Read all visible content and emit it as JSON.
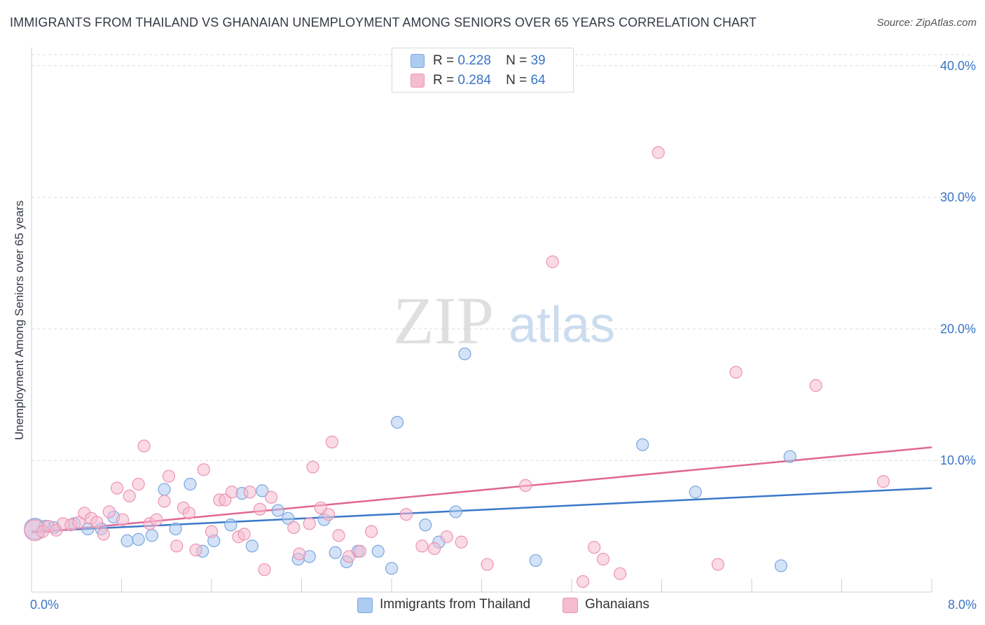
{
  "header": {
    "title": "IMMIGRANTS FROM THAILAND VS GHANAIAN UNEMPLOYMENT AMONG SENIORS OVER 65 YEARS CORRELATION CHART",
    "source": "Source: ZipAtlas.com"
  },
  "legend": {
    "series1": {
      "r_label": "R =",
      "r_value": "0.228",
      "n_label": "N =",
      "n_value": "39"
    },
    "series2": {
      "r_label": "R =",
      "r_value": "0.284",
      "n_label": "N =",
      "n_value": "64"
    }
  },
  "bottom_legend": {
    "series1": "Immigrants from Thailand",
    "series2": "Ghanaians"
  },
  "watermark": {
    "zip": "ZIP",
    "atlas": "atlas"
  },
  "colors": {
    "blue_fill": "#aecbf0",
    "blue_stroke": "#7aa7e0",
    "blue_line": "#3a78c9",
    "pink_fill": "#f5bccf",
    "pink_stroke": "#ec94b3",
    "pink_line": "#e06792",
    "axis_text": "#3a74c6",
    "grid": "#dcdcdc"
  },
  "chart_data": {
    "type": "scatter",
    "title": "IMMIGRANTS FROM THAILAND VS GHANAIAN UNEMPLOYMENT AMONG SENIORS OVER 65 YEARS CORRELATION CHART",
    "xlabel": "",
    "ylabel": "Unemployment Among Seniors over 65 years",
    "xlim": [
      0,
      8
    ],
    "ylim": [
      0,
      41
    ],
    "x_tick_labels": [
      "0.0%",
      "8.0%"
    ],
    "y_ticks": [
      10,
      20,
      30,
      40
    ],
    "y_tick_labels": [
      "10.0%",
      "20.0%",
      "30.0%",
      "40.0%"
    ],
    "grid": true,
    "series": [
      {
        "name": "Immigrants from Thailand",
        "color": "#aecbf0",
        "trend": {
          "x0": 0,
          "y0": 4.6,
          "x1": 8,
          "y1": 7.9
        },
        "points": [
          {
            "x": 0.03,
            "y": 4.8,
            "big": true
          },
          {
            "x": 0.12,
            "y": 5.0
          },
          {
            "x": 0.2,
            "y": 4.9
          },
          {
            "x": 0.38,
            "y": 5.2
          },
          {
            "x": 0.5,
            "y": 4.8
          },
          {
            "x": 0.62,
            "y": 4.8
          },
          {
            "x": 0.73,
            "y": 5.7
          },
          {
            "x": 0.85,
            "y": 3.9
          },
          {
            "x": 0.95,
            "y": 4.0
          },
          {
            "x": 1.07,
            "y": 4.3
          },
          {
            "x": 1.18,
            "y": 7.8
          },
          {
            "x": 1.28,
            "y": 4.8
          },
          {
            "x": 1.41,
            "y": 8.2
          },
          {
            "x": 1.52,
            "y": 3.1
          },
          {
            "x": 1.62,
            "y": 3.9
          },
          {
            "x": 1.77,
            "y": 5.1
          },
          {
            "x": 1.87,
            "y": 7.5
          },
          {
            "x": 1.96,
            "y": 3.5
          },
          {
            "x": 2.05,
            "y": 7.7
          },
          {
            "x": 2.19,
            "y": 6.2
          },
          {
            "x": 2.28,
            "y": 5.6
          },
          {
            "x": 2.37,
            "y": 2.5
          },
          {
            "x": 2.47,
            "y": 2.7
          },
          {
            "x": 2.6,
            "y": 5.5
          },
          {
            "x": 2.7,
            "y": 3.0
          },
          {
            "x": 2.8,
            "y": 2.3
          },
          {
            "x": 2.9,
            "y": 3.1
          },
          {
            "x": 3.08,
            "y": 3.1
          },
          {
            "x": 3.2,
            "y": 1.8
          },
          {
            "x": 3.25,
            "y": 12.9
          },
          {
            "x": 3.5,
            "y": 5.1
          },
          {
            "x": 3.62,
            "y": 3.8
          },
          {
            "x": 3.77,
            "y": 6.1
          },
          {
            "x": 3.85,
            "y": 18.1
          },
          {
            "x": 4.48,
            "y": 2.4
          },
          {
            "x": 5.43,
            "y": 11.2
          },
          {
            "x": 5.9,
            "y": 7.6
          },
          {
            "x": 6.66,
            "y": 2.0
          },
          {
            "x": 6.74,
            "y": 10.3
          }
        ]
      },
      {
        "name": "Ghanaians",
        "color": "#f5bccf",
        "trend": {
          "x0": 0,
          "y0": 4.5,
          "x1": 8,
          "y1": 11.0
        },
        "points": [
          {
            "x": 0.03,
            "y": 4.7,
            "big": true
          },
          {
            "x": 0.1,
            "y": 4.6
          },
          {
            "x": 0.15,
            "y": 5.0
          },
          {
            "x": 0.22,
            "y": 4.7
          },
          {
            "x": 0.28,
            "y": 5.2
          },
          {
            "x": 0.35,
            "y": 5.1
          },
          {
            "x": 0.42,
            "y": 5.3
          },
          {
            "x": 0.47,
            "y": 6.0
          },
          {
            "x": 0.53,
            "y": 5.6
          },
          {
            "x": 0.58,
            "y": 5.3
          },
          {
            "x": 0.64,
            "y": 4.4
          },
          {
            "x": 0.69,
            "y": 6.1
          },
          {
            "x": 0.76,
            "y": 7.9
          },
          {
            "x": 0.81,
            "y": 5.5
          },
          {
            "x": 0.87,
            "y": 7.3
          },
          {
            "x": 0.95,
            "y": 8.2
          },
          {
            "x": 1.0,
            "y": 11.1
          },
          {
            "x": 1.05,
            "y": 5.2
          },
          {
            "x": 1.11,
            "y": 5.5
          },
          {
            "x": 1.18,
            "y": 6.9
          },
          {
            "x": 1.22,
            "y": 8.8
          },
          {
            "x": 1.29,
            "y": 3.5
          },
          {
            "x": 1.35,
            "y": 6.4
          },
          {
            "x": 1.4,
            "y": 6.0
          },
          {
            "x": 1.46,
            "y": 3.2
          },
          {
            "x": 1.53,
            "y": 9.3
          },
          {
            "x": 1.6,
            "y": 4.6
          },
          {
            "x": 1.67,
            "y": 7.0
          },
          {
            "x": 1.72,
            "y": 7.0
          },
          {
            "x": 1.78,
            "y": 7.6
          },
          {
            "x": 1.84,
            "y": 4.2
          },
          {
            "x": 1.89,
            "y": 4.4
          },
          {
            "x": 1.94,
            "y": 7.6
          },
          {
            "x": 2.03,
            "y": 6.3
          },
          {
            "x": 2.07,
            "y": 1.7
          },
          {
            "x": 2.13,
            "y": 7.2
          },
          {
            "x": 2.33,
            "y": 4.9
          },
          {
            "x": 2.38,
            "y": 2.9
          },
          {
            "x": 2.47,
            "y": 5.2
          },
          {
            "x": 2.5,
            "y": 9.5
          },
          {
            "x": 2.57,
            "y": 6.4
          },
          {
            "x": 2.64,
            "y": 5.9
          },
          {
            "x": 2.67,
            "y": 11.4
          },
          {
            "x": 2.73,
            "y": 4.3
          },
          {
            "x": 2.82,
            "y": 2.7
          },
          {
            "x": 2.92,
            "y": 3.1
          },
          {
            "x": 3.02,
            "y": 4.6
          },
          {
            "x": 3.33,
            "y": 5.9
          },
          {
            "x": 3.47,
            "y": 3.5
          },
          {
            "x": 3.58,
            "y": 3.3
          },
          {
            "x": 3.69,
            "y": 4.2
          },
          {
            "x": 3.82,
            "y": 3.8
          },
          {
            "x": 4.05,
            "y": 2.1
          },
          {
            "x": 4.39,
            "y": 8.1
          },
          {
            "x": 4.63,
            "y": 25.1
          },
          {
            "x": 4.9,
            "y": 0.8
          },
          {
            "x": 5.0,
            "y": 3.4
          },
          {
            "x": 5.08,
            "y": 2.5
          },
          {
            "x": 5.23,
            "y": 1.4
          },
          {
            "x": 5.57,
            "y": 33.4
          },
          {
            "x": 6.1,
            "y": 2.1
          },
          {
            "x": 6.26,
            "y": 16.7
          },
          {
            "x": 6.97,
            "y": 15.7
          },
          {
            "x": 7.57,
            "y": 8.4
          }
        ]
      }
    ]
  }
}
